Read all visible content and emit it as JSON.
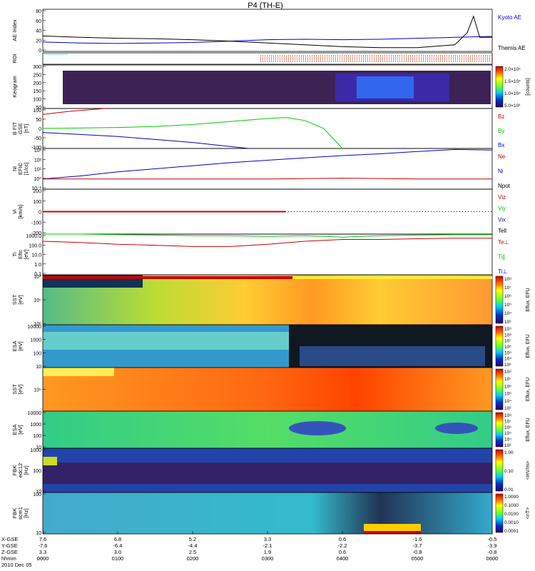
{
  "title": "P4 (TH-E)",
  "colors": {
    "kyoto": "#0000cc",
    "themis": "#000000",
    "bz": "#cc0000",
    "by": "#00cc00",
    "bx": "#0000cc",
    "ne": "#cc0000",
    "ni": "#0000cc",
    "npot": "#000000",
    "te_perp": "#cc0000",
    "ti": "#00cc00"
  },
  "panels": [
    {
      "key": "ae",
      "ylabel": [
        "AE Index"
      ],
      "ticks": [
        "80",
        "60",
        "40",
        "20",
        "0"
      ],
      "legend": [
        "Kyoto AE",
        "Themis AE"
      ]
    },
    {
      "key": "roi",
      "ylabel": [
        "ROI"
      ],
      "ticks": [],
      "legend": []
    },
    {
      "key": "keogram",
      "ylabel": [
        "Keogram"
      ],
      "ticks": [
        "300",
        "250",
        "200",
        "150",
        "100",
        "50"
      ],
      "legend": []
    },
    {
      "key": "bfield",
      "ylabel": [
        "B FIT",
        "GSE",
        "[nT]"
      ],
      "ticks": [
        "100",
        "50",
        "0",
        "-50",
        "-100"
      ],
      "legend": [
        "Bz",
        "By",
        "Bx"
      ]
    },
    {
      "key": "ni",
      "ylabel": [
        "Ni",
        "EFIC",
        "[1/cc]"
      ],
      "ticks": [
        "10³",
        "10²",
        "10¹",
        "10⁰",
        "10⁻¹"
      ],
      "legend": [
        "Ne",
        "Ni",
        "Npot"
      ]
    },
    {
      "key": "vi",
      "ylabel": [
        "Vi",
        "[km/s]"
      ],
      "ticks": [
        "200",
        "100",
        "0",
        "-100",
        "-200"
      ],
      "legend": [
        "Viz",
        "Viy",
        "Vix",
        "Tell"
      ]
    },
    {
      "key": "ti",
      "ylabel": [
        "Ti",
        "Eftc",
        "[eV]"
      ],
      "ticks": [
        "1000.0",
        "100.0",
        "10.0",
        "1.0",
        "0.1"
      ],
      "legend": [
        "Te⊥",
        "Ti∥",
        "Ti⊥"
      ]
    },
    {
      "key": "sst_e",
      "ylabel": [
        "SST",
        "[eV]"
      ],
      "ticks": [
        "10⁴",
        "10⁵",
        "10⁶"
      ],
      "legend": []
    },
    {
      "key": "esa_e",
      "ylabel": [
        "ESA",
        "[eV]"
      ],
      "ticks": [
        "10000",
        "1000",
        "100",
        "10"
      ],
      "legend": []
    },
    {
      "key": "sst_i",
      "ylabel": [
        "SST",
        "[eV]"
      ],
      "ticks": [
        "10⁵"
      ],
      "legend": []
    },
    {
      "key": "esa_i",
      "ylabel": [
        "ESA",
        "[eV]"
      ],
      "ticks": [
        "10000",
        "1000",
        "100",
        "10"
      ],
      "legend": []
    },
    {
      "key": "fbk_e",
      "ylabel": [
        "FBK",
        "edc12",
        "[Hz]"
      ],
      "ticks": [
        "1000",
        "100",
        "10"
      ],
      "legend": []
    },
    {
      "key": "fbk_b",
      "ylabel": [
        "FBK",
        "scm1",
        "[Hz]"
      ],
      "ticks": [
        "100",
        "10"
      ],
      "legend": []
    }
  ],
  "colorbars": [
    {
      "key": "keogram",
      "label": "[counts]",
      "ticks": [
        "2.0×10⁴",
        "1.5×10⁴",
        "1.0×10⁴",
        "5.0×10³"
      ]
    },
    {
      "key": "sst_e",
      "label": "Eflux, EFU",
      "ticks": [
        "10⁸",
        "10⁷",
        "10⁶",
        "10⁵",
        "10⁴",
        "10³"
      ]
    },
    {
      "key": "esa_e",
      "label": "Eflux, EFU",
      "ticks": [
        "10⁹",
        "10⁸",
        "10⁷",
        "10⁶",
        "10⁵",
        "10⁴",
        "10³"
      ]
    },
    {
      "key": "sst_i",
      "label": "Eflux, EFU",
      "ticks": [
        "10⁸",
        "10⁷",
        "10⁶",
        "10⁵",
        "10⁴",
        "10³"
      ]
    },
    {
      "key": "esa_i",
      "label": "Eflux, EFU",
      "ticks": [
        "10⁸",
        "10⁷",
        "10⁶",
        "10⁵",
        "10⁴",
        "10³"
      ]
    },
    {
      "key": "fbk_e",
      "label": "<mV/m>",
      "ticks": [
        "1.00",
        "0.10",
        "0.01"
      ]
    },
    {
      "key": "fbk_b",
      "label": "<nT>",
      "ticks": [
        "1.0000",
        "0.1000",
        "0.0100",
        "0.0010",
        "0.0001"
      ]
    }
  ],
  "footer": {
    "row_labels": [
      "X-GSE",
      "Y-GSE",
      "Z-GSE",
      "hhmm",
      "2010 Dec 05"
    ],
    "columns": [
      {
        "x": "7.6",
        "y": "-7.6",
        "z": "3.3",
        "t": "0000"
      },
      {
        "x": "6.8",
        "y": "-6.4",
        "z": "3.0",
        "t": "0100"
      },
      {
        "x": "5.2",
        "y": "-4.4",
        "z": "2.5",
        "t": "0200"
      },
      {
        "x": "3.3",
        "y": "-2.1",
        "z": "1.9",
        "t": "0300"
      },
      {
        "x": "0.6",
        "y": "-2.2",
        "z": "0.6",
        "t": "0400"
      },
      {
        "x": "-1.6",
        "y": "-3.7",
        "z": "-0.8",
        "t": "0500"
      },
      {
        "x": "-0.5",
        "y": "-3.9",
        "z": "-0.8",
        "t": "0600"
      }
    ]
  },
  "chart_data": {
    "type": "line",
    "x_label": "hhmm",
    "x_ticks": [
      "0000",
      "0100",
      "0200",
      "0300",
      "0400",
      "0500",
      "0600"
    ],
    "series": [
      {
        "name": "Kyoto AE",
        "panel": "ae",
        "x": [
          "0000",
          "0030",
          "0100",
          "0130",
          "0200",
          "0230",
          "0300",
          "0330",
          "0400",
          "0430",
          "0500",
          "0530",
          "0600"
        ],
        "values": [
          20,
          18,
          17,
          18,
          19,
          22,
          25,
          26,
          25,
          26,
          28,
          30,
          32
        ]
      },
      {
        "name": "Themis AE",
        "panel": "ae",
        "x": [
          "0000",
          "0030",
          "0100",
          "0130",
          "0200",
          "0230",
          "0300",
          "0330",
          "0400",
          "0430",
          "0500",
          "0530",
          "0540",
          "0545",
          "0550",
          "0600"
        ],
        "values": [
          33,
          30,
          28,
          27,
          25,
          22,
          18,
          14,
          10,
          8,
          8,
          14,
          40,
          75,
          30,
          30
        ]
      },
      {
        "name": "Bz",
        "panel": "bfield",
        "x": [
          "0000",
          "0010",
          "0020",
          "0030",
          "0040",
          "0050"
        ],
        "values": [
          70,
          78,
          85,
          90,
          95,
          100
        ]
      },
      {
        "name": "By",
        "panel": "bfield",
        "x": [
          "0000",
          "0030",
          "0100",
          "0130",
          "0200",
          "0230",
          "0300",
          "0315",
          "0330",
          "0345",
          "0400"
        ],
        "values": [
          0,
          2,
          5,
          10,
          20,
          35,
          50,
          55,
          40,
          0,
          -100
        ]
      },
      {
        "name": "Bx",
        "panel": "bfield",
        "x": [
          "0000",
          "0030",
          "0100",
          "0130",
          "0200",
          "0230",
          "0245"
        ],
        "values": [
          -20,
          -30,
          -40,
          -55,
          -70,
          -90,
          -100
        ]
      },
      {
        "name": "Ni",
        "panel": "ni",
        "x": [
          "0000",
          "0030",
          "0100",
          "0130",
          "0200",
          "0230",
          "0300",
          "0330",
          "0400",
          "0430",
          "0500",
          "0530",
          "0600"
        ],
        "values": [
          1,
          2,
          5,
          10,
          20,
          40,
          70,
          120,
          200,
          300,
          500,
          800,
          700
        ]
      },
      {
        "name": "Ne",
        "panel": "ni",
        "x": [
          "0000",
          "0100",
          "0200",
          "0300",
          "0400",
          "0500",
          "0600"
        ],
        "values": [
          1,
          1,
          1,
          1,
          1.2,
          1,
          1
        ]
      },
      {
        "name": "Ti",
        "panel": "ti",
        "x": [
          "0000",
          "0030",
          "0100",
          "0130",
          "0200",
          "0230",
          "0300",
          "0330",
          "0400",
          "0430",
          "0500",
          "0530",
          "0600"
        ],
        "values": [
          1000,
          1000,
          900,
          800,
          700,
          700,
          600,
          700,
          500,
          700,
          800,
          900,
          900
        ]
      },
      {
        "name": "Te⊥",
        "panel": "ti",
        "x": [
          "0000",
          "0030",
          "0100",
          "0130",
          "0200",
          "0230",
          "0300",
          "0330",
          "0400",
          "0430",
          "0500",
          "0530",
          "0600"
        ],
        "values": [
          200,
          150,
          100,
          80,
          60,
          60,
          100,
          200,
          300,
          300,
          350,
          400,
          400
        ]
      }
    ]
  }
}
